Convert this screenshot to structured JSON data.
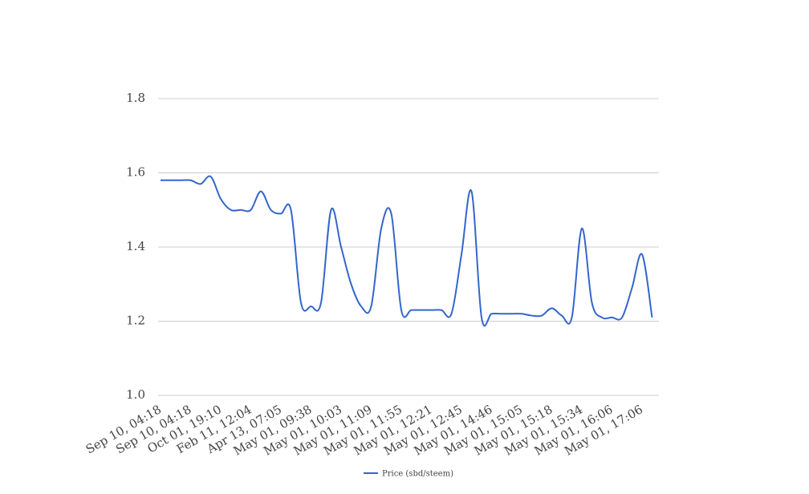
{
  "chart_data": {
    "type": "line",
    "categories": [
      "Sep 10, 04:18",
      null,
      null,
      "Sep 10, 04:18",
      null,
      null,
      "Oct 01, 19:10",
      null,
      null,
      "Feb 11, 12:04",
      null,
      null,
      "Apr 13, 07:05",
      null,
      null,
      "May 01, 09:38",
      null,
      null,
      "May 01, 10:03",
      null,
      null,
      "May 01, 11:09",
      null,
      null,
      "May 01, 11:55",
      null,
      null,
      "May 01, 12:21",
      null,
      null,
      "May 01, 12:45",
      null,
      null,
      "May 01, 14:46",
      null,
      null,
      "May 01, 15:05",
      null,
      null,
      "May 01, 15:18",
      null,
      null,
      "May 01, 15:34",
      null,
      null,
      "May 01, 16:06",
      null,
      null,
      "May 01, 17:06",
      null
    ],
    "series": [
      {
        "name": "Price (sbd/steem)",
        "color": "#3366cc",
        "values": [
          1.58,
          1.58,
          1.58,
          1.58,
          1.57,
          1.59,
          1.53,
          1.5,
          1.5,
          1.5,
          1.55,
          1.5,
          1.49,
          1.5,
          1.25,
          1.24,
          1.25,
          1.5,
          1.4,
          1.3,
          1.24,
          1.24,
          1.45,
          1.49,
          1.23,
          1.23,
          1.23,
          1.23,
          1.23,
          1.22,
          1.38,
          1.55,
          1.21,
          1.22,
          1.22,
          1.22,
          1.22,
          1.215,
          1.215,
          1.235,
          1.215,
          1.21,
          1.45,
          1.25,
          1.21,
          1.21,
          1.21,
          1.29,
          1.38,
          1.21
        ]
      }
    ],
    "ylim": [
      1.0,
      1.8
    ],
    "yticks": [
      {
        "value": 1.0,
        "label": "1.0"
      },
      1.2,
      1.4,
      1.6,
      1.8
    ],
    "grid": true,
    "legend": "bottom"
  }
}
